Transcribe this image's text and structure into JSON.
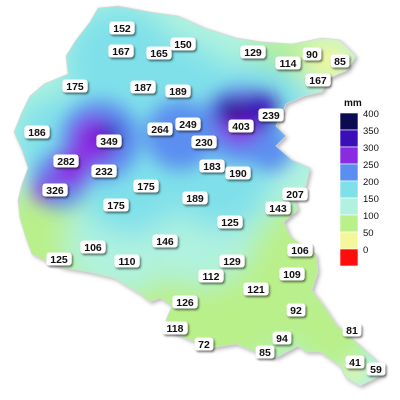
{
  "legend": {
    "unit": "mm",
    "classes": [
      {
        "label": "400",
        "color": "#0b0b52"
      },
      {
        "label": "350",
        "color": "#3a0fb8"
      },
      {
        "label": "300",
        "color": "#8a2be2"
      },
      {
        "label": "250",
        "color": "#5b8ef0"
      },
      {
        "label": "200",
        "color": "#7fe0ea"
      },
      {
        "label": "150",
        "color": "#b0f2df"
      },
      {
        "label": "100",
        "color": "#b9f08a"
      },
      {
        "label": "50",
        "color": "#f4f89a"
      },
      {
        "label": "0",
        "color": "#ff0d0d"
      }
    ]
  },
  "stations": [
    {
      "id": "s01",
      "value": "152"
    },
    {
      "id": "s02",
      "value": "167"
    },
    {
      "id": "s03",
      "value": "165"
    },
    {
      "id": "s04",
      "value": "150"
    },
    {
      "id": "s05",
      "value": "129"
    },
    {
      "id": "s06",
      "value": "90"
    },
    {
      "id": "s07",
      "value": "85"
    },
    {
      "id": "s08",
      "value": "114"
    },
    {
      "id": "s09",
      "value": "167"
    },
    {
      "id": "s10",
      "value": "175"
    },
    {
      "id": "s11",
      "value": "187"
    },
    {
      "id": "s12",
      "value": "189"
    },
    {
      "id": "s13",
      "value": "239"
    },
    {
      "id": "s14",
      "value": "186"
    },
    {
      "id": "s15",
      "value": "349"
    },
    {
      "id": "s16",
      "value": "264"
    },
    {
      "id": "s17",
      "value": "249"
    },
    {
      "id": "s18",
      "value": "230"
    },
    {
      "id": "s19",
      "value": "403"
    },
    {
      "id": "s20",
      "value": "282"
    },
    {
      "id": "s21",
      "value": "232"
    },
    {
      "id": "s22",
      "value": "183"
    },
    {
      "id": "s23",
      "value": "190"
    },
    {
      "id": "s24",
      "value": "326"
    },
    {
      "id": "s25",
      "value": "175"
    },
    {
      "id": "s26",
      "value": "189"
    },
    {
      "id": "s27",
      "value": "207"
    },
    {
      "id": "s28",
      "value": "175"
    },
    {
      "id": "s29",
      "value": "143"
    },
    {
      "id": "s30",
      "value": "125"
    },
    {
      "id": "s31",
      "value": "146"
    },
    {
      "id": "s32",
      "value": "106"
    },
    {
      "id": "s33",
      "value": "106"
    },
    {
      "id": "s34",
      "value": "125"
    },
    {
      "id": "s35",
      "value": "110"
    },
    {
      "id": "s36",
      "value": "129"
    },
    {
      "id": "s37",
      "value": "112"
    },
    {
      "id": "s38",
      "value": "109"
    },
    {
      "id": "s39",
      "value": "121"
    },
    {
      "id": "s40",
      "value": "126"
    },
    {
      "id": "s41",
      "value": "92"
    },
    {
      "id": "s42",
      "value": "118"
    },
    {
      "id": "s43",
      "value": "81"
    },
    {
      "id": "s44",
      "value": "72"
    },
    {
      "id": "s45",
      "value": "94"
    },
    {
      "id": "s46",
      "value": "85"
    },
    {
      "id": "s47",
      "value": "41"
    },
    {
      "id": "s48",
      "value": "59"
    }
  ]
}
